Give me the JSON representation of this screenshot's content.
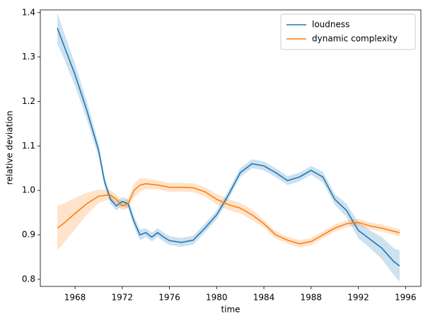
{
  "chart_data": {
    "type": "line",
    "xlabel": "time",
    "ylabel": "relative deviation",
    "xlim": [
      1965.06,
      1997.3
    ],
    "ylim": [
      0.784,
      1.406
    ],
    "xticks": [
      1968,
      1972,
      1976,
      1980,
      1984,
      1988,
      1992,
      1996
    ],
    "yticks": [
      0.8,
      0.9,
      {
        "value": 1,
        "label": "1.0"
      },
      1.1,
      1.2,
      1.3,
      1.4
    ],
    "legend": "upper right",
    "series": [
      {
        "name": "loudness",
        "color": "#1f77b4",
        "band_color": "#1f77b4",
        "x": [
          1966.5,
          1967,
          1968,
          1969,
          1970,
          1970.5,
          1971,
          1971.5,
          1972,
          1972.5,
          1973,
          1973.5,
          1974,
          1974.5,
          1975,
          1975.5,
          1976,
          1977,
          1978,
          1979,
          1980,
          1981,
          1982,
          1983,
          1984,
          1985,
          1986,
          1987,
          1988,
          1989,
          1990,
          1991,
          1992,
          1993,
          1994,
          1995,
          1995.5
        ],
        "values": [
          1.365,
          1.33,
          1.26,
          1.18,
          1.09,
          1.02,
          0.98,
          0.965,
          0.975,
          0.97,
          0.93,
          0.9,
          0.905,
          0.895,
          0.905,
          0.895,
          0.887,
          0.883,
          0.888,
          0.915,
          0.945,
          0.99,
          1.04,
          1.06,
          1.055,
          1.04,
          1.022,
          1.03,
          1.045,
          1.03,
          0.98,
          0.955,
          0.91,
          0.89,
          0.87,
          0.84,
          0.83
        ],
        "lower": [
          1.33,
          1.3,
          1.235,
          1.16,
          1.075,
          1.008,
          0.97,
          0.955,
          0.965,
          0.96,
          0.918,
          0.888,
          0.895,
          0.885,
          0.895,
          0.885,
          0.877,
          0.873,
          0.878,
          0.905,
          0.935,
          0.98,
          1.03,
          1.05,
          1.045,
          1.03,
          1.012,
          1.02,
          1.035,
          1.018,
          0.968,
          0.94,
          0.892,
          0.87,
          0.845,
          0.81,
          0.795
        ],
        "upper": [
          1.4,
          1.36,
          1.285,
          1.2,
          1.105,
          1.032,
          0.99,
          0.975,
          0.985,
          0.98,
          0.942,
          0.912,
          0.915,
          0.905,
          0.915,
          0.905,
          0.897,
          0.893,
          0.898,
          0.925,
          0.955,
          1.0,
          1.05,
          1.07,
          1.065,
          1.05,
          1.032,
          1.04,
          1.055,
          1.042,
          0.992,
          0.97,
          0.928,
          0.91,
          0.895,
          0.87,
          0.865
        ]
      },
      {
        "name": "dynamic complexity",
        "color": "#ff7f0e",
        "band_color": "#ff7f0e",
        "x": [
          1966.5,
          1967,
          1968,
          1969,
          1970,
          1971,
          1971.5,
          1972,
          1972.5,
          1973,
          1973.5,
          1974,
          1975,
          1976,
          1977,
          1978,
          1979,
          1980,
          1981,
          1982,
          1983,
          1984,
          1985,
          1986,
          1987,
          1988,
          1989,
          1990,
          1991,
          1992,
          1993,
          1994,
          1995,
          1995.5
        ],
        "values": [
          0.915,
          0.925,
          0.948,
          0.97,
          0.987,
          0.99,
          0.98,
          0.965,
          0.97,
          1.0,
          1.012,
          1.015,
          1.012,
          1.007,
          1.007,
          1.006,
          0.997,
          0.98,
          0.968,
          0.96,
          0.945,
          0.925,
          0.9,
          0.888,
          0.88,
          0.885,
          0.9,
          0.915,
          0.925,
          0.928,
          0.92,
          0.915,
          0.908,
          0.905
        ],
        "lower": [
          0.865,
          0.88,
          0.913,
          0.945,
          0.972,
          0.98,
          0.97,
          0.955,
          0.96,
          0.985,
          0.997,
          1.003,
          1.002,
          0.997,
          0.997,
          0.996,
          0.987,
          0.968,
          0.956,
          0.948,
          0.933,
          0.917,
          0.892,
          0.88,
          0.872,
          0.877,
          0.892,
          0.907,
          0.917,
          0.92,
          0.912,
          0.907,
          0.9,
          0.897
        ],
        "upper": [
          0.965,
          0.97,
          0.983,
          0.995,
          1.002,
          1.0,
          0.99,
          0.975,
          0.98,
          1.015,
          1.027,
          1.027,
          1.022,
          1.017,
          1.017,
          1.016,
          1.007,
          0.992,
          0.98,
          0.972,
          0.957,
          0.933,
          0.908,
          0.896,
          0.888,
          0.893,
          0.908,
          0.923,
          0.933,
          0.936,
          0.928,
          0.923,
          0.916,
          0.913
        ]
      }
    ]
  }
}
